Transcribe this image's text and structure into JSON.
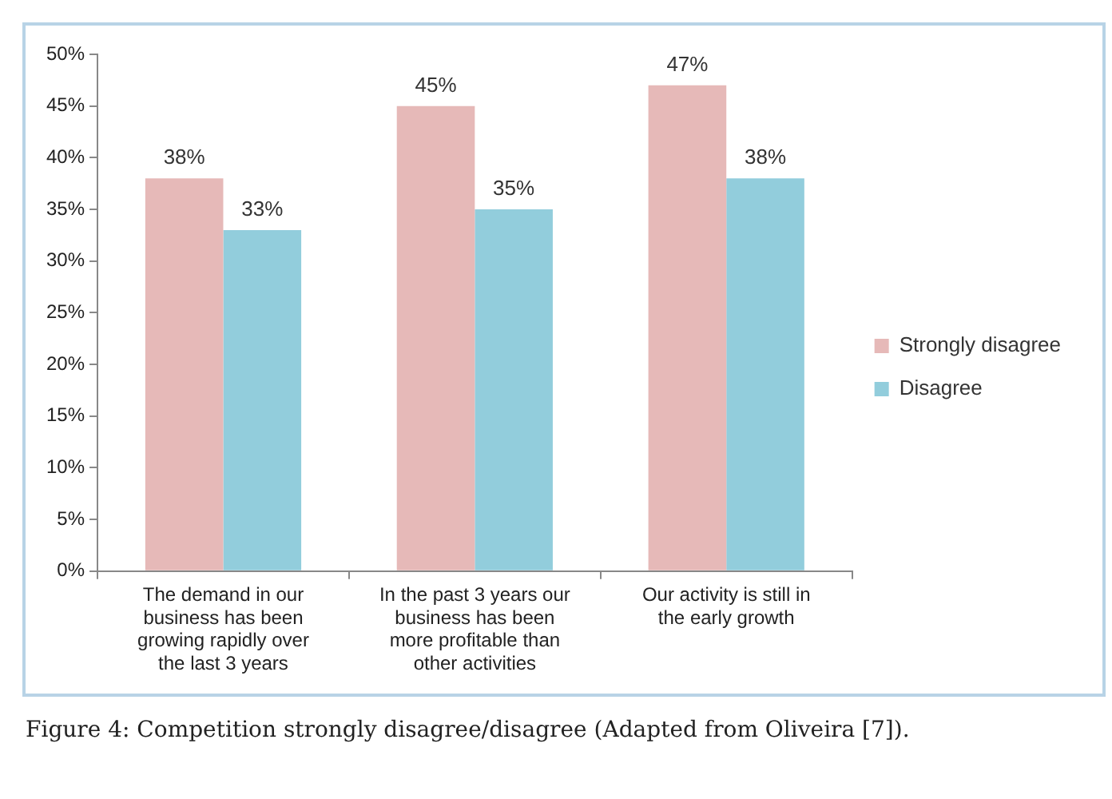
{
  "chart_data": {
    "type": "bar",
    "categories": [
      "The demand in our business has been growing rapidly over the last 3 years",
      "In the past 3 years our business has been more profitable than other activities",
      "Our activity is still in the early growth"
    ],
    "series": [
      {
        "name": "Strongly disagree",
        "color": "#e6b9b8",
        "values": [
          38,
          45,
          47
        ],
        "value_labels": [
          "38%",
          "45%",
          "47%"
        ]
      },
      {
        "name": "Disagree",
        "color": "#92cddc",
        "values": [
          33,
          35,
          38
        ],
        "value_labels": [
          "33%",
          "35%",
          "38%"
        ]
      }
    ],
    "ylim": [
      0,
      50
    ],
    "yticks": [
      {
        "value": 0,
        "label": "0%"
      },
      {
        "value": 5,
        "label": "5%"
      },
      {
        "value": 10,
        "label": "10%"
      },
      {
        "value": 15,
        "label": "15%"
      },
      {
        "value": 20,
        "label": "20%"
      },
      {
        "value": 25,
        "label": "25%"
      },
      {
        "value": 30,
        "label": "30%"
      },
      {
        "value": 35,
        "label": "35%"
      },
      {
        "value": 40,
        "label": "40%"
      },
      {
        "value": 45,
        "label": "45%"
      },
      {
        "value": 50,
        "label": "50%"
      }
    ],
    "grid": false,
    "legend": "right",
    "annotations": [
      "Figure 4: Competition strongly disagree/disagree (Adapted from Oliveira [7])."
    ]
  }
}
